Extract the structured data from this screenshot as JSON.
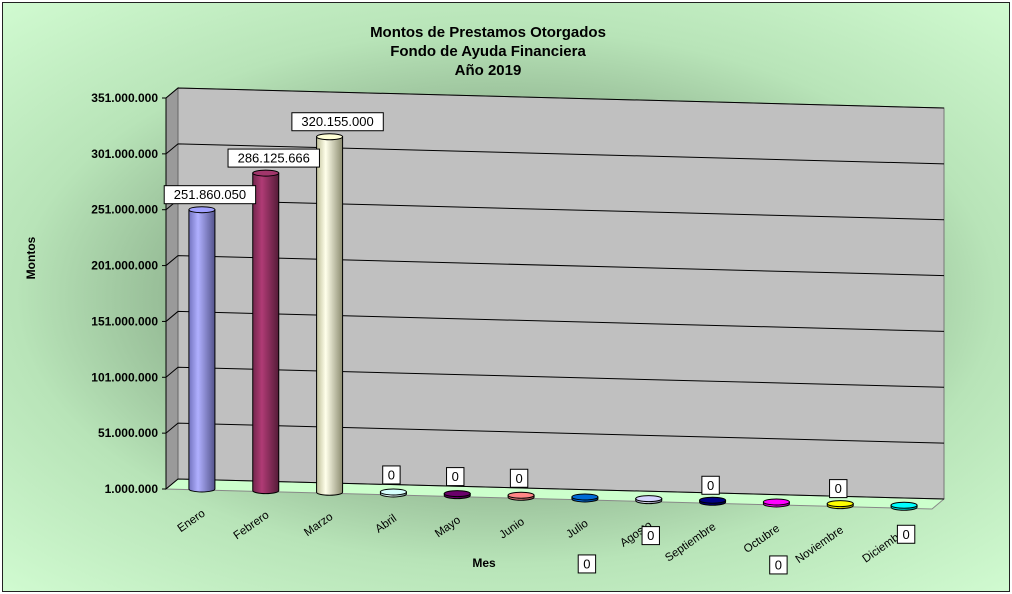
{
  "chart_data": {
    "type": "bar",
    "title": [
      "Montos de Prestamos Otorgados",
      "Fondo de Ayuda Financiera",
      "Año 2019"
    ],
    "xlabel": "Mes",
    "ylabel": "Montos",
    "categories": [
      "Enero",
      "Febrero",
      "Marzo",
      "Abril",
      "Mayo",
      "Junio",
      "Julio",
      "Agosto",
      "Septiembre",
      "Octubre",
      "Noviembre",
      "Diciembre"
    ],
    "values": [
      251860050,
      286125666,
      320155000,
      0,
      0,
      0,
      0,
      0,
      0,
      0,
      0,
      0
    ],
    "data_labels": [
      "251.860.050",
      "286.125.666",
      "320.155.000",
      "0",
      "0",
      "0",
      "0",
      "0",
      "0",
      "0",
      "0",
      "0"
    ],
    "yticks": [
      1000000,
      51000000,
      101000000,
      151000000,
      201000000,
      251000000,
      301000000,
      351000000
    ],
    "ytick_labels": [
      "1.000.000",
      "51.000.000",
      "101.000.000",
      "151.000.000",
      "201.000.000",
      "251.000.000",
      "301.000.000",
      "351.000.000"
    ],
    "ylim": [
      1000000,
      351000000
    ],
    "grid": true,
    "legend": "none",
    "style": "3d-cylinder",
    "colors": [
      "#9999ff",
      "#993366",
      "#ffffcc",
      "#ccffff",
      "#660066",
      "#ff8080",
      "#0066cc",
      "#ccccff",
      "#000080",
      "#ff00ff",
      "#ffff00",
      "#00ffff"
    ],
    "wall_color": "#c0c0c0",
    "floor_color": "#ccffcc",
    "background": "#ccffcc"
  }
}
